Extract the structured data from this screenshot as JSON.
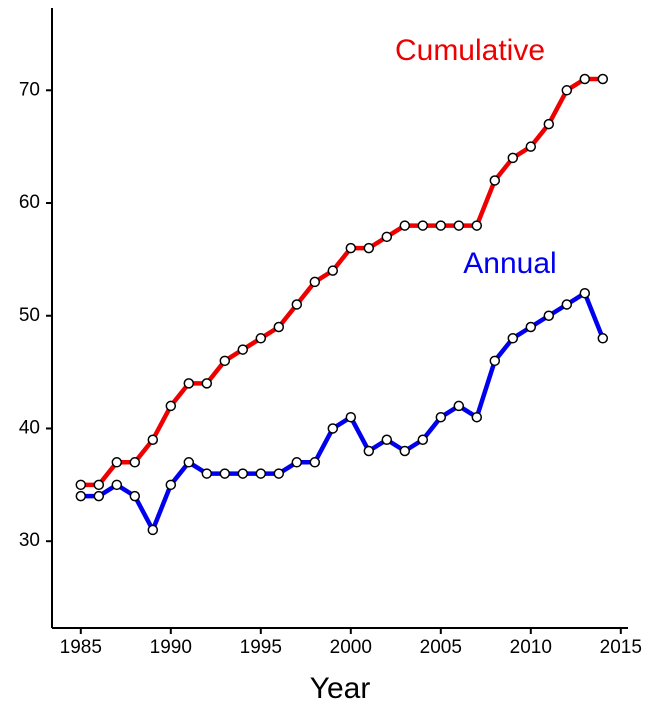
{
  "chart_data": {
    "type": "line",
    "x_label": "Year",
    "x": [
      1985,
      1986,
      1987,
      1988,
      1989,
      1990,
      1991,
      1992,
      1993,
      1994,
      1995,
      1996,
      1997,
      1998,
      1999,
      2000,
      2001,
      2002,
      2003,
      2004,
      2005,
      2006,
      2007,
      2008,
      2009,
      2010,
      2011,
      2012,
      2013,
      2014
    ],
    "series": [
      {
        "name": "Cumulative",
        "color": "#ee0000",
        "values": [
          35,
          35,
          37,
          37,
          39,
          42,
          44,
          44,
          46,
          47,
          48,
          49,
          51,
          53,
          54,
          56,
          56,
          57,
          58,
          58,
          58,
          58,
          58,
          62,
          64,
          65,
          67,
          70,
          71,
          71
        ]
      },
      {
        "name": "Annual",
        "color": "#0000ee",
        "values": [
          34,
          34,
          35,
          34,
          31,
          35,
          37,
          36,
          36,
          36,
          36,
          36,
          37,
          37,
          40,
          41,
          38,
          39,
          38,
          39,
          41,
          42,
          41,
          46,
          48,
          49,
          50,
          51,
          52,
          48
        ]
      }
    ],
    "xlim": [
      1983.4,
      2015.4
    ],
    "xticks": [
      1985,
      1990,
      1995,
      2000,
      2005,
      2010,
      2015
    ],
    "ylim": [
      22.3,
      77.3
    ],
    "yticks": [
      30,
      40,
      50,
      60,
      70
    ],
    "grid": false
  }
}
